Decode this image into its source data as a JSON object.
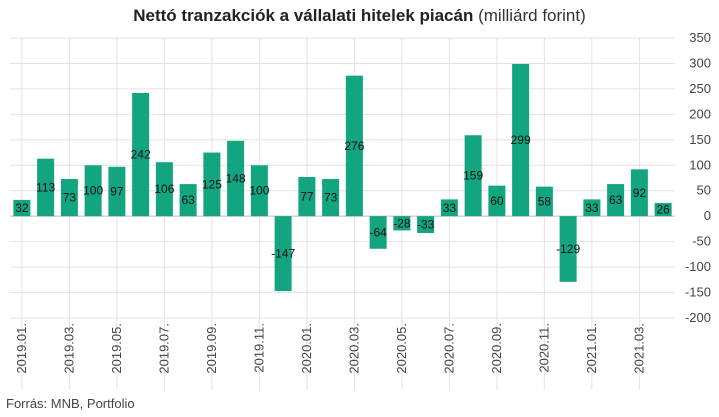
{
  "title_bold": "Nettó tranzakciók a vállalati hitelek piacán",
  "title_unit": "(milliárd forint)",
  "source": "Forrás: MNB, Portfolio",
  "colors": {
    "bar": "#12a57f",
    "grid": "#e2e2e2",
    "zero": "#bbbbbb"
  },
  "chart_data": {
    "type": "bar",
    "title": "Nettó tranzakciók a vállalati hitelek piacán (milliárd forint)",
    "xlabel": "",
    "ylabel": "",
    "ylim": [
      -200,
      350
    ],
    "yticks": [
      -200,
      -150,
      -100,
      -50,
      0,
      50,
      100,
      150,
      200,
      250,
      300,
      350
    ],
    "y_axis_side": "right",
    "grid": true,
    "categories": [
      "2019.01.",
      "2019.02.",
      "2019.03.",
      "2019.04.",
      "2019.05.",
      "2019.06.",
      "2019.07.",
      "2019.08.",
      "2019.09.",
      "2019.10.",
      "2019.11.",
      "2019.12.",
      "2020.01.",
      "2020.02.",
      "2020.03.",
      "2020.04.",
      "2020.05.",
      "2020.06.",
      "2020.07.",
      "2020.08.",
      "2020.09.",
      "2020.10.",
      "2020.11.",
      "2020.12.",
      "2021.01.",
      "2021.02.",
      "2021.03.",
      "2021.04."
    ],
    "values": [
      32,
      113,
      73,
      100,
      97,
      242,
      106,
      63,
      125,
      148,
      100,
      -147,
      77,
      73,
      276,
      -64,
      -28,
      -33,
      33,
      159,
      60,
      299,
      58,
      -129,
      33,
      63,
      92,
      26
    ],
    "x_tick_labels": [
      "2019.01.",
      "2019.03.",
      "2019.05.",
      "2019.07.",
      "2019.09.",
      "2019.11.",
      "2020.01.",
      "2020.03.",
      "2020.05.",
      "2020.07.",
      "2020.09.",
      "2020.11.",
      "2021.01.",
      "2021.03."
    ]
  }
}
